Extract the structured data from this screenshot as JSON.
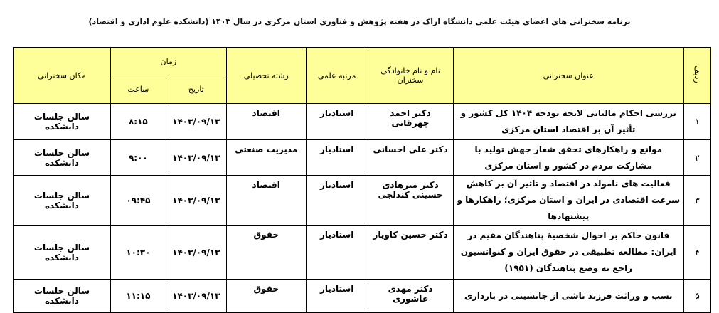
{
  "title": "برنامه سخنرانی های اعضای هیئت علمی دانشگاه اراک در هفته پژوهش و فناوری استان مرکزی در سال ۱۴۰۳ (دانشکده علوم اداری و اقتصاد)",
  "headers": {
    "row": "ردیف",
    "topic": "عنوان سخنرانی",
    "name": "نام و نام خانوادگی سخنران",
    "rank": "مرتبه علمی",
    "field": "رشته تحصیلی",
    "time_group": "زمان",
    "date": "تاریخ",
    "hour": "ساعت",
    "place": "مکان سخنرانی"
  },
  "rows": [
    {
      "num": "۱",
      "topic": "بررسی احکام مالیاتی لایحه بودجه ۱۴۰۴ کل کشور و تأثیر آن بر اقتصاد استان مرکزی",
      "name": "دکتر احمد چهرقانی",
      "rank": "استادیار",
      "field": "اقتصاد",
      "date": "۱۴۰۳/۰۹/۱۳",
      "hour": "۸:۱۵",
      "place": "سالن جلسات دانشکده"
    },
    {
      "num": "۲",
      "topic": "موانع و راهکارهای تحقق شعار جهش تولید با مشارکت مردم در کشور و استان مرکزی",
      "name": "دکتر علی احسانی",
      "rank": "استادیار",
      "field": "مدیریت صنعتی",
      "date": "۱۴۰۳/۰۹/۱۳",
      "hour": "۹:۰۰",
      "place": "سالن جلسات دانشکده"
    },
    {
      "num": "۳",
      "topic": "فعالیت های نامولد در اقتصاد و تاثیر آن بر کاهش سرعت اقتصادی در ایران و استان مرکزی؛ راهکارها و پیشنهادها",
      "name": "دکتر میرهادی حسینی کندلجی",
      "rank": "استادیار",
      "field": "اقتصاد",
      "date": "۱۴۰۳/۰۹/۱۳",
      "hour": "۰۹:۴۵",
      "place": "سالن جلسات دانشکده"
    },
    {
      "num": "۴",
      "topic": "قانون حاکم بر احوال شخصیهٔ پناهندگان مقیم در ایران: مطالعه تطبیقی در حقوق ایران و کنوانسیون راجع به وضع پناهندگان (۱۹۵۱)",
      "name": "دکتر حسین کاویار",
      "rank": "استادیار",
      "field": "حقوق",
      "date": "۱۴۰۳/۰۹/۱۳",
      "hour": "۱۰:۳۰",
      "place": "سالن جلسات دانشکده"
    },
    {
      "num": "۵",
      "topic": "نسب و وراثت فرزند ناشی از جانشینی در بارداری",
      "name": "دکتر مهدی عاشوری",
      "rank": "استادیار",
      "field": "حقوق",
      "date": "۱۴۰۳/۰۹/۱۳",
      "hour": "۱۱:۱۵",
      "place": "سالن جلسات دانشکده"
    }
  ],
  "colors": {
    "header_bg": "#ffff99"
  }
}
